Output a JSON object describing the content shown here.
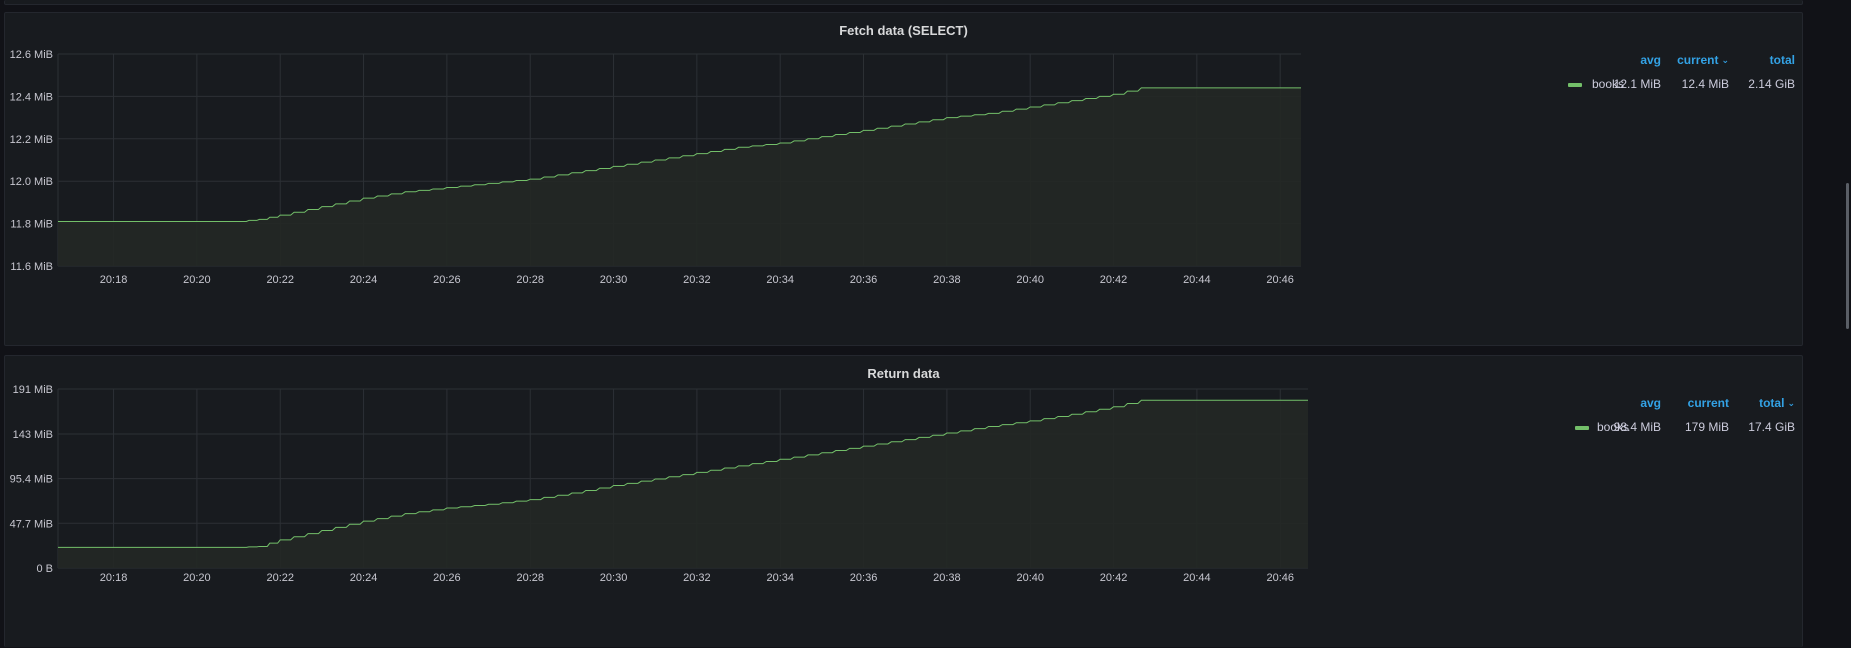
{
  "colors": {
    "series": "#73bf69",
    "fill": "#232825",
    "grid": "#2c3035",
    "tick": "#c7c7d0",
    "accent": "#33a2e5"
  },
  "panels": [
    {
      "title": "Fetch data (SELECT)",
      "legend": {
        "headers": [
          {
            "label": "avg",
            "sort": false
          },
          {
            "label": "current",
            "sort": true
          },
          {
            "label": "total",
            "sort": false
          }
        ],
        "rows": [
          {
            "name": "books",
            "avg": "12.1 MiB",
            "current": "12.4 MiB",
            "total": "2.14 GiB"
          }
        ]
      }
    },
    {
      "title": "Return data",
      "legend": {
        "headers": [
          {
            "label": "avg",
            "sort": false
          },
          {
            "label": "current",
            "sort": false
          },
          {
            "label": "total",
            "sort": true
          }
        ],
        "rows": [
          {
            "name": "books",
            "avg": "98.4 MiB",
            "current": "179 MiB",
            "total": "17.4 GiB"
          }
        ]
      }
    }
  ],
  "chart_data": [
    {
      "type": "line",
      "title": "Fetch data (SELECT)",
      "xlim": [
        "20:16:40",
        "20:46:30"
      ],
      "x_ticks": [
        "20:18",
        "20:20",
        "20:22",
        "20:24",
        "20:26",
        "20:28",
        "20:30",
        "20:32",
        "20:34",
        "20:36",
        "20:38",
        "20:40",
        "20:42",
        "20:44",
        "20:46"
      ],
      "ylim": [
        11.6,
        12.6
      ],
      "y_unit": "MiB",
      "y_ticks": [
        {
          "value": 11.6,
          "label": "11.6 MiB"
        },
        {
          "value": 11.8,
          "label": "11.8 MiB"
        },
        {
          "value": 12.0,
          "label": "12.0 MiB"
        },
        {
          "value": 12.2,
          "label": "12.2 MiB"
        },
        {
          "value": 12.4,
          "label": "12.4 MiB"
        },
        {
          "value": 12.6,
          "label": "12.6 MiB"
        }
      ],
      "series": [
        {
          "name": "books",
          "points": [
            [
              "20:16:40",
              11.81
            ],
            [
              "20:21:00",
              11.81
            ],
            [
              "20:21:30",
              11.82
            ],
            [
              "20:22:00",
              11.84
            ],
            [
              "20:23:00",
              11.88
            ],
            [
              "20:24:00",
              11.92
            ],
            [
              "20:25:00",
              11.95
            ],
            [
              "20:26:00",
              11.97
            ],
            [
              "20:27:00",
              11.99
            ],
            [
              "20:28:00",
              12.01
            ],
            [
              "20:29:00",
              12.04
            ],
            [
              "20:30:00",
              12.07
            ],
            [
              "20:31:00",
              12.1
            ],
            [
              "20:32:00",
              12.13
            ],
            [
              "20:33:00",
              12.16
            ],
            [
              "20:34:00",
              12.18
            ],
            [
              "20:35:00",
              12.21
            ],
            [
              "20:36:00",
              12.24
            ],
            [
              "20:37:00",
              12.27
            ],
            [
              "20:38:00",
              12.3
            ],
            [
              "20:39:00",
              12.32
            ],
            [
              "20:40:00",
              12.35
            ],
            [
              "20:41:00",
              12.38
            ],
            [
              "20:42:00",
              12.41
            ],
            [
              "20:42:40",
              12.44
            ],
            [
              "20:46:30",
              12.44
            ]
          ]
        }
      ]
    },
    {
      "type": "line",
      "title": "Return data",
      "xlim": [
        "20:16:40",
        "20:46:40"
      ],
      "x_ticks": [
        "20:18",
        "20:20",
        "20:22",
        "20:24",
        "20:26",
        "20:28",
        "20:30",
        "20:32",
        "20:34",
        "20:36",
        "20:38",
        "20:40",
        "20:42",
        "20:44",
        "20:46"
      ],
      "ylim": [
        0,
        191
      ],
      "y_unit": "MiB",
      "y_ticks": [
        {
          "value": 0,
          "label": "0 B"
        },
        {
          "value": 47.7,
          "label": "47.7 MiB"
        },
        {
          "value": 95.4,
          "label": "95.4 MiB"
        },
        {
          "value": 143,
          "label": "143 MiB"
        },
        {
          "value": 191,
          "label": "191 MiB"
        }
      ],
      "series": [
        {
          "name": "books",
          "points": [
            [
              "20:16:40",
              22
            ],
            [
              "20:21:00",
              22
            ],
            [
              "20:21:30",
              23
            ],
            [
              "20:22:00",
              30
            ],
            [
              "20:23:00",
              40
            ],
            [
              "20:24:00",
              50
            ],
            [
              "20:25:00",
              58
            ],
            [
              "20:26:00",
              64
            ],
            [
              "20:27:00",
              68
            ],
            [
              "20:28:00",
              73
            ],
            [
              "20:29:00",
              80
            ],
            [
              "20:30:00",
              88
            ],
            [
              "20:31:00",
              95
            ],
            [
              "20:32:00",
              102
            ],
            [
              "20:33:00",
              109
            ],
            [
              "20:34:00",
              116
            ],
            [
              "20:35:00",
              123
            ],
            [
              "20:36:00",
              130
            ],
            [
              "20:37:00",
              137
            ],
            [
              "20:38:00",
              144
            ],
            [
              "20:39:00",
              151
            ],
            [
              "20:40:00",
              157
            ],
            [
              "20:41:00",
              164
            ],
            [
              "20:42:00",
              172
            ],
            [
              "20:42:40",
              179
            ],
            [
              "20:46:40",
              179
            ]
          ]
        }
      ]
    }
  ]
}
